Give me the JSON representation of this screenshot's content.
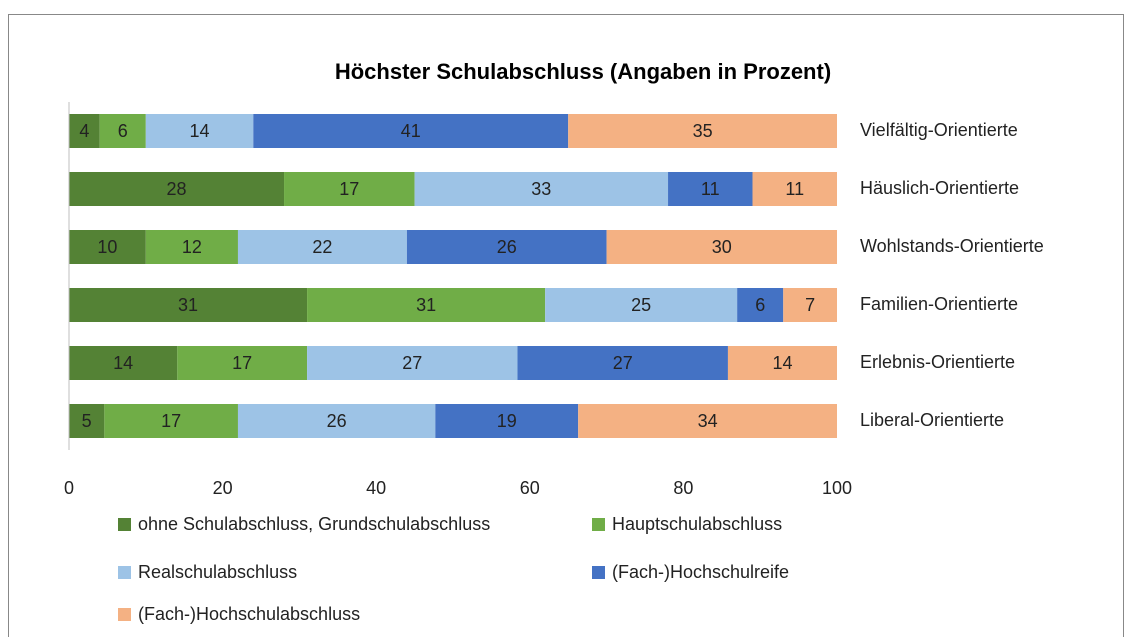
{
  "chart_data": {
    "type": "stacked-bar-horizontal",
    "title": "Höchster Schulabschluss  (Angaben in Prozent)",
    "categories": [
      "Vielfältig-Orientierte",
      "Häuslich-Orientierte",
      "Wohlstands-Orientierte",
      "Familien-Orientierte",
      "Erlebnis-Orientierte",
      "Liberal-Orientierte"
    ],
    "series": [
      {
        "name": "ohne Schulabschluss, Grundschulabschluss",
        "color": "#548235",
        "values": [
          4,
          28,
          10,
          31,
          14.1,
          4.6
        ],
        "value_labels": [
          "4",
          "28",
          "10",
          "31",
          "14",
          "5"
        ]
      },
      {
        "name": "Hauptschulabschluss",
        "color": "#70ad47",
        "values": [
          6,
          17,
          12,
          31,
          16.9,
          17.4
        ],
        "value_labels": [
          "6",
          "17",
          "12",
          "31",
          "17",
          "17"
        ]
      },
      {
        "name": "Realschulabschluss",
        "color": "#9dc3e6",
        "values": [
          14,
          33,
          22,
          25,
          27.4,
          25.7
        ],
        "value_labels": [
          "14",
          "33",
          "22",
          "25",
          "27",
          "26"
        ]
      },
      {
        "name": "(Fach-)Hochschulreife",
        "color": "#4472c4",
        "values": [
          41,
          11,
          26,
          6,
          27.4,
          18.6
        ],
        "value_labels": [
          "41",
          "11",
          "26",
          "6",
          "27",
          "19"
        ]
      },
      {
        "name": "(Fach-)Hochschulabschluss",
        "color": "#f4b183",
        "values": [
          35,
          11,
          30,
          7,
          14.2,
          33.7
        ],
        "value_labels": [
          "35",
          "11",
          "30",
          "7",
          "14",
          "34"
        ]
      }
    ],
    "xlim": [
      0,
      100
    ],
    "xticks": [
      0,
      20,
      40,
      60,
      80,
      100
    ],
    "grid": false,
    "legend": "bottom"
  }
}
